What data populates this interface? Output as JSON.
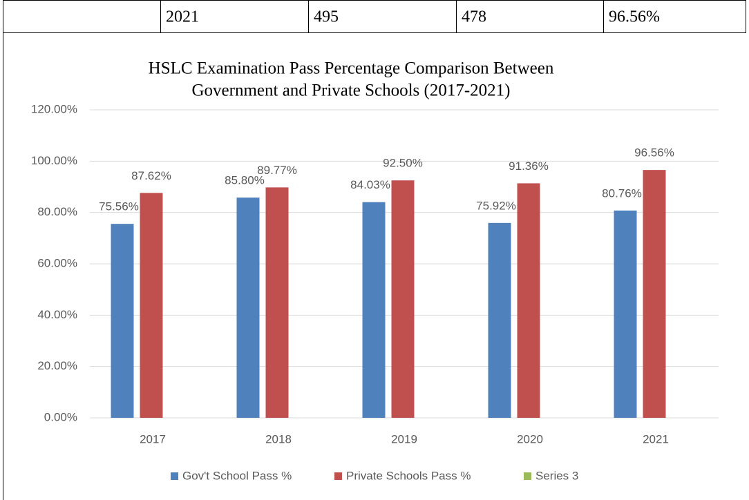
{
  "table": {
    "rows": [
      [
        "2021",
        "495",
        "478",
        "96.56%"
      ]
    ]
  },
  "chart_data": {
    "type": "bar",
    "title": [
      "HSLC Examination Pass Percentage Comparison Between",
      "Government and Private Schools (2017-2021)"
    ],
    "categories": [
      "2017",
      "2018",
      "2019",
      "2020",
      "2021"
    ],
    "series": [
      {
        "name": "Gov't School Pass %",
        "color": "#4f81bd",
        "values": [
          75.56,
          85.8,
          84.03,
          75.92,
          80.76
        ],
        "value_labels": [
          "75.56%",
          "85.80%",
          "84.03%",
          "75.92%",
          "80.76%"
        ]
      },
      {
        "name": "Private Schools Pass %",
        "color": "#c0504d",
        "values": [
          87.62,
          89.77,
          92.5,
          91.36,
          96.56
        ],
        "value_labels": [
          "87.62%",
          "89.77%",
          "92.50%",
          "91.36%",
          "96.56%"
        ]
      },
      {
        "name": "Series 3",
        "color": "#9bbb59",
        "values": [
          null,
          null,
          null,
          null,
          null
        ]
      }
    ],
    "ylim": [
      0,
      120
    ],
    "yticks": [
      {
        "value": 0,
        "label": "0.00%"
      },
      {
        "value": 20,
        "label": "20.00%"
      },
      {
        "value": 40,
        "label": "40.00%"
      },
      {
        "value": 60,
        "label": "60.00%"
      },
      {
        "value": 80,
        "label": "80.00%"
      },
      {
        "value": 100,
        "label": "100.00%"
      },
      {
        "value": 120,
        "label": "120.00%"
      }
    ],
    "grid": true,
    "legend": "bottom"
  }
}
